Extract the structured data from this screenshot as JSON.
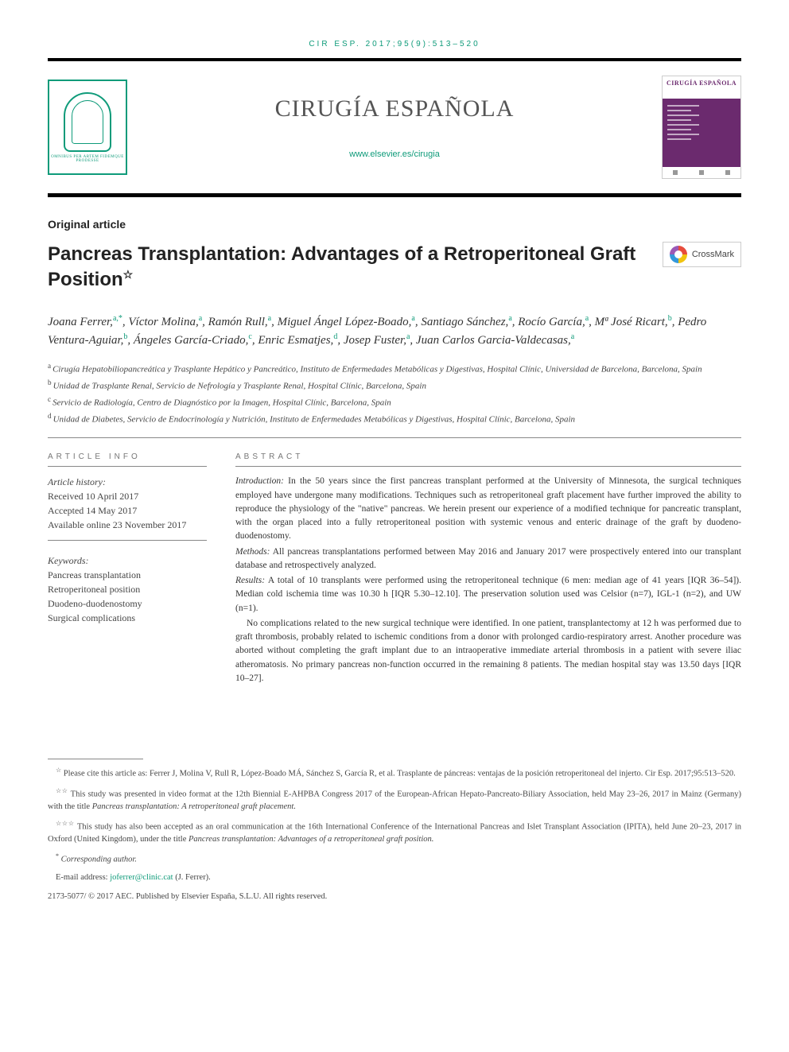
{
  "citation": "CIR ESP. 2017;95(9):513–520",
  "journal": {
    "name": "CIRUGÍA ESPAÑOLA",
    "url": "www.elsevier.es/cirugia",
    "cover_title": "CIRUGÍA ESPAÑOLA",
    "logo_motto": "OMNIBUS PER ARTEM FIDEMQUE PRODESSE"
  },
  "colors": {
    "accent": "#0f9b7a",
    "text": "#3a3a3a",
    "rule": "#000000",
    "cover": "#6b2a6e"
  },
  "article": {
    "section": "Original article",
    "title": "Pancreas Transplantation: Advantages of a Retroperitoneal Graft Position",
    "title_note_symbol": "☆",
    "crossmark": "CrossMark"
  },
  "authors": [
    {
      "name": "Joana Ferrer",
      "sup": "a,",
      "corr": "*"
    },
    {
      "name": "Víctor Molina",
      "sup": "a"
    },
    {
      "name": "Ramón Rull",
      "sup": "a"
    },
    {
      "name": "Miguel Ángel López-Boado",
      "sup": "a"
    },
    {
      "name": "Santiago Sánchez",
      "sup": "a"
    },
    {
      "name": "Rocío García",
      "sup": "a"
    },
    {
      "name": "Mª José Ricart",
      "sup": "b"
    },
    {
      "name": "Pedro Ventura-Aguiar",
      "sup": "b"
    },
    {
      "name": "Ángeles García-Criado",
      "sup": "c"
    },
    {
      "name": "Enric Esmatjes",
      "sup": "d"
    },
    {
      "name": "Josep Fuster",
      "sup": "a"
    },
    {
      "name": "Juan Carlos Garcia-Valdecasas",
      "sup": "a"
    }
  ],
  "affiliations": [
    {
      "sup": "a",
      "text": "Cirugía Hepatobiliopancreática y Trasplante Hepático y Pancreático, Instituto de Enfermedades Metabólicas y Digestivas, Hospital Clínic, Universidad de Barcelona, Barcelona, Spain"
    },
    {
      "sup": "b",
      "text": "Unidad de Trasplante Renal, Servicio de Nefrología y Trasplante Renal, Hospital Clínic, Barcelona, Spain"
    },
    {
      "sup": "c",
      "text": "Servicio de Radiología, Centro de Diagnóstico por la Imagen, Hospital Clínic, Barcelona, Spain"
    },
    {
      "sup": "d",
      "text": "Unidad de Diabetes, Servicio de Endocrinología y Nutrición, Instituto de Enfermedades Metabólicas y Digestivas, Hospital Clínic, Barcelona, Spain"
    }
  ],
  "article_info": {
    "heading": "ARTICLE INFO",
    "history_label": "Article history:",
    "received": "Received 10 April 2017",
    "accepted": "Accepted 14 May 2017",
    "online": "Available online 23 November 2017",
    "keywords_label": "Keywords:",
    "keywords": [
      "Pancreas transplantation",
      "Retroperitoneal position",
      "Duodeno-duodenostomy",
      "Surgical complications"
    ]
  },
  "abstract": {
    "heading": "ABSTRACT",
    "intro_label": "Introduction:",
    "intro": "In the 50 years since the first pancreas transplant performed at the University of Minnesota, the surgical techniques employed have undergone many modifications. Techniques such as retroperitoneal graft placement have further improved the ability to reproduce the physiology of the \"native\" pancreas. We herein present our experience of a modified technique for pancreatic transplant, with the organ placed into a fully retroperitoneal position with systemic venous and enteric drainage of the graft by duodeno-duodenostomy.",
    "methods_label": "Methods:",
    "methods": "All pancreas transplantations performed between May 2016 and January 2017 were prospectively entered into our transplant database and retrospectively analyzed.",
    "results_label": "Results:",
    "results": "A total of 10 transplants were performed using the retroperitoneal technique (6 men: median age of 41 years [IQR 36–54]). Median cold ischemia time was 10.30 h [IQR 5.30–12.10]. The preservation solution used was Celsior (n=7), IGL-1 (n=2), and UW (n=1).",
    "results2": "No complications related to the new surgical technique were identified. In one patient, transplantectomy at 12 h was performed due to graft thrombosis, probably related to ischemic conditions from a donor with prolonged cardio-respiratory arrest. Another procedure was aborted without completing the graft implant due to an intraoperative immediate arterial thrombosis in a patient with severe iliac atheromatosis. No primary pancreas non-function occurred in the remaining 8 patients. The median hospital stay was 13.50 days [IQR 10–27]."
  },
  "footnotes": {
    "f1_sym": "☆",
    "f1": "Please cite this article as: Ferrer J, Molina V, Rull R, López-Boado MÁ, Sánchez S, García R, et al. Trasplante de páncreas: ventajas de la posición retroperitoneal del injerto. Cir Esp. 2017;95:513–520.",
    "f2_sym": "☆☆",
    "f2a": "This study was presented in video format at the 12th Biennial E-AHPBA Congress 2017 of the European-African Hepato-Pancreato-Biliary Association, held May 23–26, 2017 in Mainz (Germany) with the title ",
    "f2b": "Pancreas transplantation: A retroperitoneal graft placement.",
    "f3_sym": "☆☆☆",
    "f3a": "This study has also been accepted as an oral communication at the 16th International Conference of the International Pancreas and Islet Transplant Association (IPITA), held June 20–23, 2017 in Oxford (United Kingdom), under the title ",
    "f3b": "Pancreas transplantation: Advantages of a retroperitoneal graft position.",
    "corr_sym": "*",
    "corr_label": "Corresponding author.",
    "email_label": "E-mail address: ",
    "email": "joferrer@clinic.cat",
    "email_who": " (J. Ferrer)."
  },
  "copyright": "2173-5077/ © 2017 AEC. Published by Elsevier España, S.L.U. All rights reserved."
}
